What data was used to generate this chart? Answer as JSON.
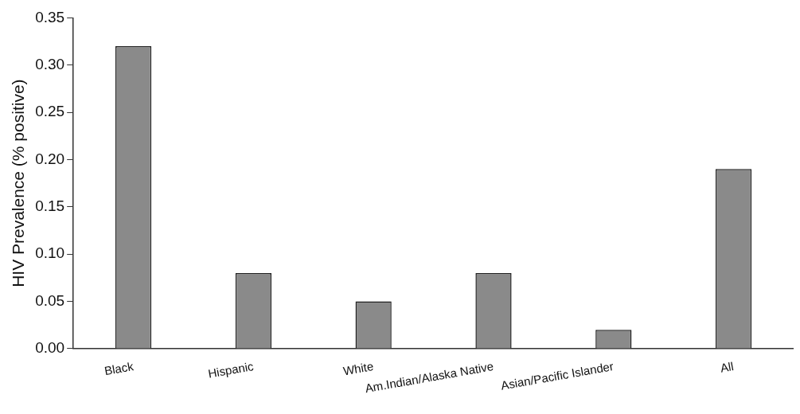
{
  "chart_data": {
    "type": "bar",
    "ylabel": "HIV Prevalence (% positive)",
    "categories": [
      "Black",
      "Hispanic",
      "White",
      "Am.Indian/Alaska Native",
      "Asian/Pacific Islander",
      "All"
    ],
    "values": [
      0.32,
      0.08,
      0.05,
      0.08,
      0.02,
      0.19
    ],
    "color": "#8a8a8a",
    "ylim": [
      0,
      0.35
    ],
    "yticks": [
      {
        "value": 0,
        "label": "0.00"
      },
      {
        "value": 0.05,
        "label": "0.05"
      },
      {
        "value": 0.1,
        "label": "0.10"
      },
      {
        "value": 0.15,
        "label": "0.15"
      },
      {
        "value": 0.2,
        "label": "0.20"
      },
      {
        "value": 0.25,
        "label": "0.25"
      },
      {
        "value": 0.3,
        "label": "0.30"
      },
      {
        "value": 0.35,
        "label": "0.35"
      }
    ],
    "grid": false,
    "legend": false
  }
}
